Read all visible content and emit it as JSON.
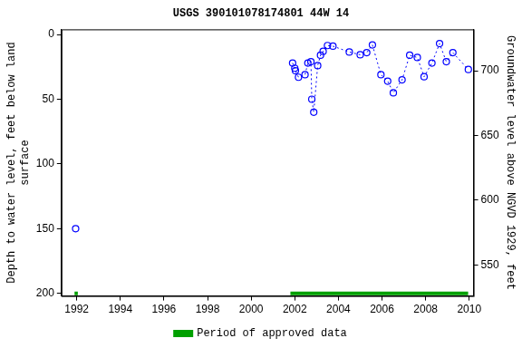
{
  "chart_data": {
    "type": "scatter",
    "title": "USGS 390101078174801 44W 14",
    "ylabel": [
      "Depth to water level, feet below land",
      "surface"
    ],
    "y2label": "Groundwater level above NGVD 1929, feet",
    "x": [
      1991.95,
      2001.9,
      2002.0,
      2002.03,
      2002.17,
      2002.47,
      2002.6,
      2002.74,
      2002.78,
      2002.87,
      2003.05,
      2003.18,
      2003.3,
      2003.5,
      2003.75,
      2004.5,
      2005.0,
      2005.3,
      2005.56,
      2005.95,
      2006.26,
      2006.52,
      2006.92,
      2007.27,
      2007.62,
      2007.93,
      2008.29,
      2008.64,
      2008.95,
      2009.25,
      2009.96
    ],
    "values": [
      150,
      22,
      26,
      28,
      33,
      31,
      22,
      21,
      50,
      60,
      24,
      16,
      13,
      8.5,
      9,
      13.5,
      15.6,
      14,
      8,
      31,
      36,
      45,
      35,
      16,
      17.7,
      32.6,
      22,
      7,
      21,
      14,
      27
    ],
    "color": "#0000ff",
    "marker": "circle",
    "line_style": "dotted",
    "approved_periods": {
      "name": "Period of approved data",
      "color": "#00a000",
      "depth": 200,
      "ranges": [
        [
          1991.9,
          1992.05
        ],
        [
          2001.8,
          2009.95
        ]
      ]
    },
    "xlim": [
      1991.3,
      2010.2
    ],
    "xticks": [
      1992,
      1994,
      1996,
      1998,
      2000,
      2002,
      2004,
      2006,
      2008,
      2010
    ],
    "ylim": [
      -4,
      202
    ],
    "yticks": [
      0,
      50,
      100,
      150,
      200
    ],
    "y2lim": [
      526,
      732
    ],
    "y2ticks": [
      550,
      600,
      650,
      700
    ],
    "grid": false,
    "legend": "bottom"
  }
}
